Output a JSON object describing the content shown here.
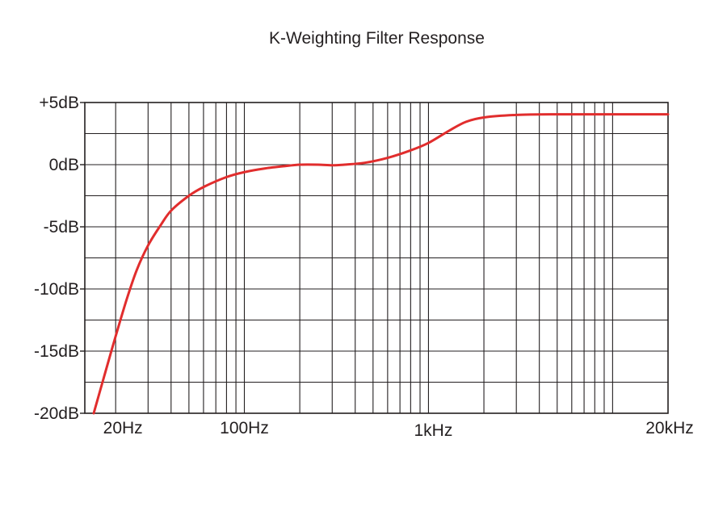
{
  "chart_data": {
    "type": "line",
    "title": "K-Weighting Filter Response",
    "xscale": "log",
    "xlim_hz": [
      13.6,
      20000
    ],
    "ylim_db": [
      -20,
      5
    ],
    "y_ticks": [
      {
        "value": 5,
        "label": "+5dB"
      },
      {
        "value": 0,
        "label": "0dB"
      },
      {
        "value": -5,
        "label": "-5dB"
      },
      {
        "value": -10,
        "label": "-10dB"
      },
      {
        "value": -15,
        "label": "-15dB"
      },
      {
        "value": -20,
        "label": "-20dB"
      }
    ],
    "x_ticks": [
      {
        "value": 20,
        "label": "20Hz"
      },
      {
        "value": 100,
        "label": "100Hz"
      },
      {
        "value": 1000,
        "label": "1kHz"
      },
      {
        "value": 20000,
        "label": "20kHz"
      }
    ],
    "series": [
      {
        "name": "K-Weighting",
        "color": "#e12d2d",
        "points": [
          [
            15.2,
            -20.0
          ],
          [
            17.5,
            -16.8
          ],
          [
            20,
            -13.8
          ],
          [
            23,
            -10.8
          ],
          [
            26,
            -8.5
          ],
          [
            30,
            -6.5
          ],
          [
            35,
            -4.9
          ],
          [
            40,
            -3.7
          ],
          [
            50,
            -2.5
          ],
          [
            60,
            -1.8
          ],
          [
            80,
            -1.0
          ],
          [
            100,
            -0.6
          ],
          [
            130,
            -0.3
          ],
          [
            170,
            -0.1
          ],
          [
            200,
            0.0
          ],
          [
            250,
            0.0
          ],
          [
            300,
            -0.05
          ],
          [
            350,
            0.0
          ],
          [
            450,
            0.15
          ],
          [
            600,
            0.55
          ],
          [
            800,
            1.15
          ],
          [
            1000,
            1.75
          ],
          [
            1300,
            2.75
          ],
          [
            1600,
            3.45
          ],
          [
            2000,
            3.8
          ],
          [
            3000,
            4.0
          ],
          [
            5000,
            4.05
          ],
          [
            10000,
            4.05
          ],
          [
            20000,
            4.05
          ]
        ]
      }
    ]
  }
}
